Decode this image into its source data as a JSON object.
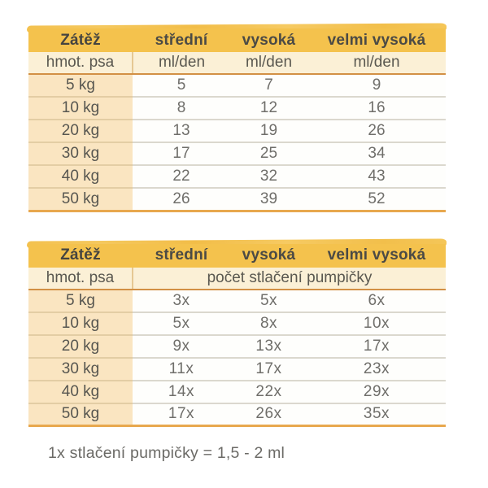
{
  "table_ml": {
    "load_label": "Zátěž",
    "columns": [
      "střední",
      "vysoká",
      "velmi vysoká"
    ],
    "weight_label": "hmot. psa",
    "unit_labels": [
      "ml/den",
      "ml/den",
      "ml/den"
    ],
    "rows": [
      {
        "weight": "5 kg",
        "values": [
          "5",
          "7",
          "9"
        ]
      },
      {
        "weight": "10 kg",
        "values": [
          "8",
          "12",
          "16"
        ]
      },
      {
        "weight": "20 kg",
        "values": [
          "13",
          "19",
          "26"
        ]
      },
      {
        "weight": "30 kg",
        "values": [
          "17",
          "25",
          "34"
        ]
      },
      {
        "weight": "40 kg",
        "values": [
          "22",
          "32",
          "43"
        ]
      },
      {
        "weight": "50 kg",
        "values": [
          "26",
          "39",
          "52"
        ]
      }
    ]
  },
  "table_pump": {
    "load_label": "Zátěž",
    "columns": [
      "střední",
      "vysoká",
      "velmi vysoká"
    ],
    "weight_label": "hmot. psa",
    "span_label": "počet stlačení pumpičky",
    "rows": [
      {
        "weight": "5 kg",
        "values": [
          "3x",
          "5x",
          "6x"
        ]
      },
      {
        "weight": "10 kg",
        "values": [
          "5x",
          "8x",
          "10x"
        ]
      },
      {
        "weight": "20 kg",
        "values": [
          "9x",
          "13x",
          "17x"
        ]
      },
      {
        "weight": "30 kg",
        "values": [
          "11x",
          "17x",
          "23x"
        ]
      },
      {
        "weight": "40 kg",
        "values": [
          "14x",
          "22x",
          "29x"
        ]
      },
      {
        "weight": "50 kg",
        "values": [
          "17x",
          "26x",
          "35x"
        ]
      }
    ]
  },
  "footnote": "1x stlačení pumpičky = 1,5 - 2 ml",
  "colors": {
    "header_yellow": "#f4c24d",
    "subheader_cream": "#fbf0d6",
    "weight_column_peach": "#fae5c1",
    "accent_line_orange": "#d29045",
    "table_bottom_orange": "#e8a84e",
    "row_divider_gray": "#dbd8ce",
    "text_dark": "#4b4a45",
    "text_gray": "#6f6e6a"
  },
  "chart_data": [
    {
      "type": "table",
      "title": "Dávkování v ml/den podle zátěže a hmotnosti psa",
      "columns": [
        "Zátěž / hmot. psa",
        "střední (ml/den)",
        "vysoká (ml/den)",
        "velmi vysoká (ml/den)"
      ],
      "rows": [
        [
          "5 kg",
          5,
          7,
          9
        ],
        [
          "10 kg",
          8,
          12,
          16
        ],
        [
          "20 kg",
          13,
          19,
          26
        ],
        [
          "30 kg",
          17,
          25,
          34
        ],
        [
          "40 kg",
          22,
          32,
          43
        ],
        [
          "50 kg",
          26,
          39,
          52
        ]
      ]
    },
    {
      "type": "table",
      "title": "Počet stlačení pumpičky podle zátěže a hmotnosti psa",
      "columns": [
        "Zátěž / hmot. psa",
        "střední (počet stlačení)",
        "vysoká (počet stlačení)",
        "velmi vysoká (počet stlačení)"
      ],
      "rows": [
        [
          "5 kg",
          3,
          5,
          6
        ],
        [
          "10 kg",
          5,
          8,
          10
        ],
        [
          "20 kg",
          9,
          13,
          17
        ],
        [
          "30 kg",
          11,
          17,
          23
        ],
        [
          "40 kg",
          14,
          22,
          29
        ],
        [
          "50 kg",
          17,
          26,
          35
        ]
      ],
      "note": "1x stlačení pumpičky = 1,5 - 2 ml"
    }
  ]
}
